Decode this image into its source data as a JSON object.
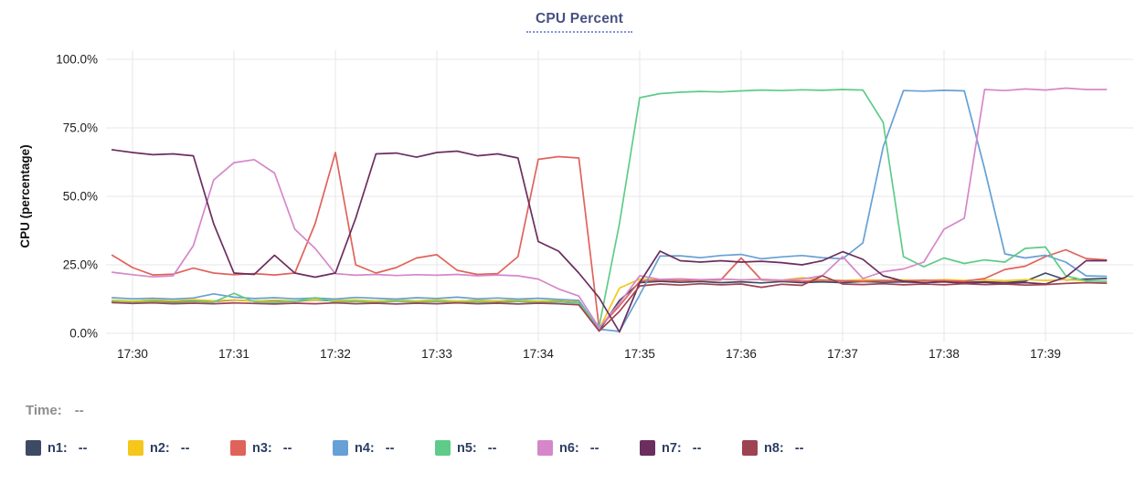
{
  "header": {
    "title": "CPU Percent"
  },
  "time_row": {
    "label": "Time:",
    "value": "--"
  },
  "legend": [
    {
      "label": "n1:",
      "value": "--"
    },
    {
      "label": "n2:",
      "value": "--"
    },
    {
      "label": "n3:",
      "value": "--"
    },
    {
      "label": "n4:",
      "value": "--"
    },
    {
      "label": "n5:",
      "value": "--"
    },
    {
      "label": "n6:",
      "value": "--"
    },
    {
      "label": "n7:",
      "value": "--"
    },
    {
      "label": "n8:",
      "value": "--"
    }
  ],
  "chart_data": {
    "type": "line",
    "title": "CPU Percent",
    "xlabel": "",
    "ylabel": "CPU (percentage)",
    "ylim": [
      0,
      100
    ],
    "grid": true,
    "legend_position": "bottom",
    "grid_color": "#e7e7e7",
    "y_ticks": [
      {
        "value": 0,
        "label": "0.0%"
      },
      {
        "value": 25,
        "label": "25.0%"
      },
      {
        "value": 50,
        "label": "50.0%"
      },
      {
        "value": 75,
        "label": "75.0%"
      },
      {
        "value": 100,
        "label": "100.0%"
      }
    ],
    "x_ticks": [
      {
        "minute": 30,
        "label": "17:30"
      },
      {
        "minute": 31,
        "label": "17:31"
      },
      {
        "minute": 32,
        "label": "17:32"
      },
      {
        "minute": 33,
        "label": "17:33"
      },
      {
        "minute": 34,
        "label": "17:34"
      },
      {
        "minute": 35,
        "label": "17:35"
      },
      {
        "minute": 36,
        "label": "17:36"
      },
      {
        "minute": 37,
        "label": "17:37"
      },
      {
        "minute": 38,
        "label": "17:38"
      },
      {
        "minute": 39,
        "label": "17:39"
      }
    ],
    "x_unit": "minutes after 17:00",
    "x_start": 29.8,
    "x_step": 0.2,
    "series": [
      {
        "name": "n1",
        "color": "#3d4a64",
        "values": [
          11.9,
          11.7,
          12.0,
          11.6,
          11.9,
          11.7,
          12.1,
          11.8,
          12.0,
          11.7,
          12.2,
          11.8,
          12.0,
          11.7,
          12.1,
          11.8,
          12.0,
          11.7,
          12.1,
          11.8,
          12.0,
          11.7,
          12.0,
          11.5,
          1.0,
          12.0,
          18.5,
          19.0,
          18.6,
          18.9,
          18.5,
          18.8,
          18.4,
          18.9,
          18.5,
          18.8,
          18.5,
          18.9,
          18.6,
          18.8,
          18.5,
          18.9,
          18.6,
          18.8,
          18.5,
          19.0,
          22.0,
          19.5,
          19.8,
          20.0
        ]
      },
      {
        "name": "n2",
        "color": "#f5c71b",
        "values": [
          12.1,
          11.8,
          12.2,
          11.9,
          12.3,
          11.9,
          12.2,
          11.8,
          12.1,
          11.9,
          12.3,
          12.0,
          12.2,
          11.8,
          12.1,
          11.9,
          12.2,
          11.8,
          12.0,
          11.9,
          12.2,
          11.8,
          12.1,
          11.6,
          1.5,
          16.5,
          19.8,
          19.5,
          19.9,
          19.4,
          19.8,
          19.5,
          19.7,
          19.4,
          20.3,
          19.5,
          19.2,
          19.6,
          19.3,
          19.5,
          19.2,
          19.6,
          19.3,
          19.5,
          19.2,
          19.6,
          19.3,
          19.6,
          19.2,
          19.0
        ]
      },
      {
        "name": "n3",
        "color": "#e0635b",
        "values": [
          28.5,
          24.0,
          21.3,
          21.6,
          23.8,
          22.0,
          21.4,
          21.8,
          21.3,
          22.0,
          40.0,
          66.0,
          25.0,
          22.0,
          24.0,
          27.5,
          28.7,
          23.0,
          21.5,
          21.8,
          28.0,
          63.5,
          64.5,
          64.0,
          2.0,
          10.0,
          19.0,
          19.5,
          19.2,
          19.4,
          19.5,
          27.5,
          19.5,
          19.3,
          19.0,
          19.4,
          19.2,
          19.0,
          19.3,
          19.1,
          19.4,
          19.2,
          19.0,
          20.0,
          23.3,
          24.5,
          28.0,
          30.5,
          27.3,
          26.8
        ]
      },
      {
        "name": "n4",
        "color": "#66a0d6",
        "values": [
          13.0,
          12.6,
          12.8,
          12.5,
          12.9,
          14.4,
          13.2,
          12.7,
          13.0,
          12.6,
          12.9,
          12.5,
          13.1,
          12.8,
          12.5,
          13.0,
          12.7,
          13.2,
          12.6,
          12.9,
          12.5,
          12.8,
          12.4,
          12.0,
          1.5,
          0.7,
          14.0,
          28.2,
          28.3,
          27.6,
          28.4,
          28.8,
          27.2,
          27.9,
          28.4,
          27.6,
          27.2,
          33.0,
          68.0,
          88.6,
          88.4,
          88.7,
          88.5,
          60.0,
          29.0,
          27.5,
          28.5,
          26.0,
          21.0,
          20.8
        ]
      },
      {
        "name": "n5",
        "color": "#5fcb89",
        "values": [
          11.6,
          11.3,
          11.5,
          11.2,
          11.6,
          11.4,
          14.6,
          11.5,
          11.3,
          11.7,
          13.0,
          11.4,
          11.6,
          11.3,
          11.7,
          11.4,
          11.6,
          11.3,
          11.5,
          11.2,
          11.6,
          11.3,
          11.5,
          11.0,
          2.5,
          40.0,
          86.0,
          87.5,
          88.0,
          88.3,
          88.1,
          88.5,
          88.8,
          88.6,
          88.9,
          88.7,
          89.0,
          88.8,
          77.0,
          28.0,
          24.3,
          27.5,
          25.5,
          26.8,
          26.0,
          31.0,
          31.5,
          21.0,
          19.2,
          19.0
        ]
      },
      {
        "name": "n6",
        "color": "#d587c9",
        "values": [
          22.3,
          21.4,
          20.6,
          21.0,
          32.0,
          56.0,
          62.3,
          63.4,
          58.5,
          38.0,
          31.0,
          21.8,
          21.2,
          21.5,
          21.1,
          21.4,
          21.2,
          21.5,
          21.0,
          21.3,
          21.0,
          19.8,
          16.2,
          13.6,
          2.0,
          11.0,
          21.0,
          19.7,
          19.9,
          19.6,
          19.8,
          19.5,
          19.7,
          19.4,
          19.8,
          21.0,
          28.0,
          20.0,
          22.5,
          23.5,
          26.0,
          38.0,
          42.0,
          89.0,
          88.6,
          89.2,
          88.8,
          89.5,
          89.0,
          89.0
        ]
      },
      {
        "name": "n7",
        "color": "#6b2e5f",
        "values": [
          67.0,
          66.0,
          65.2,
          65.5,
          64.8,
          40.0,
          22.0,
          21.5,
          28.5,
          22.0,
          20.5,
          22.0,
          42.0,
          65.5,
          65.8,
          64.3,
          66.0,
          66.5,
          64.8,
          65.5,
          64.0,
          33.5,
          30.0,
          22.0,
          13.0,
          0.5,
          18.5,
          30.0,
          26.5,
          26.0,
          26.5,
          26.0,
          26.3,
          25.8,
          25.0,
          26.5,
          29.8,
          27.0,
          21.0,
          19.0,
          18.5,
          18.8,
          18.3,
          18.6,
          18.2,
          18.5,
          18.0,
          20.5,
          26.5,
          26.5
        ]
      },
      {
        "name": "n8",
        "color": "#9e4352",
        "values": [
          11.2,
          10.9,
          11.1,
          10.8,
          11.0,
          10.8,
          11.1,
          10.9,
          10.7,
          11.0,
          10.8,
          11.1,
          10.8,
          11.0,
          10.7,
          11.0,
          10.8,
          11.1,
          10.8,
          11.0,
          10.7,
          11.0,
          10.8,
          10.4,
          0.8,
          8.0,
          17.3,
          18.0,
          17.6,
          18.1,
          17.7,
          18.0,
          16.8,
          17.9,
          17.5,
          21.0,
          18.0,
          17.8,
          18.1,
          17.7,
          18.0,
          17.7,
          18.1,
          17.8,
          18.0,
          17.6,
          17.8,
          18.2,
          18.5,
          18.3
        ]
      }
    ]
  }
}
